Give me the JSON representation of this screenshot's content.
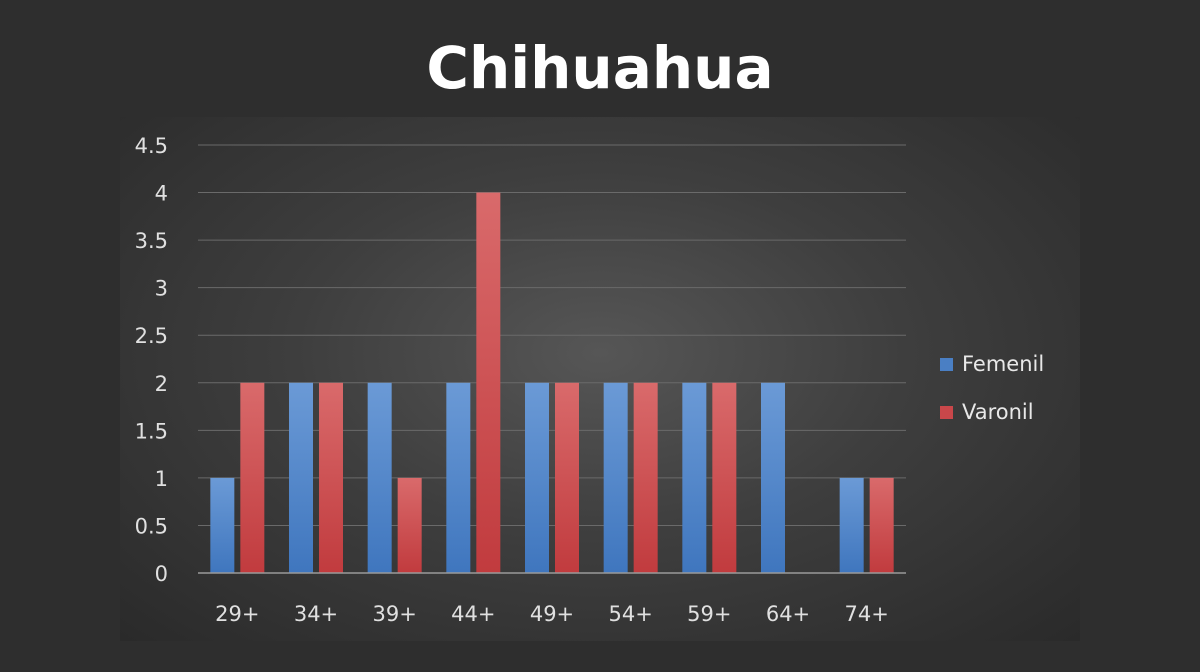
{
  "chart_data": {
    "type": "bar",
    "title": "Chihuahua",
    "categories": [
      "29+",
      "34+",
      "39+",
      "44+",
      "49+",
      "54+",
      "59+",
      "64+",
      "74+"
    ],
    "series": [
      {
        "name": "Femenil",
        "color": "#4a7fc4",
        "values": [
          1,
          2,
          2,
          2,
          2,
          2,
          2,
          2,
          1
        ]
      },
      {
        "name": "Varonil",
        "color": "#c9474a",
        "values": [
          2,
          2,
          1,
          4,
          2,
          2,
          2,
          0,
          1
        ]
      }
    ],
    "xlabel": "",
    "ylabel": "",
    "ylim": [
      0,
      4.5
    ],
    "yticks": [
      "0",
      "0.5",
      "1",
      "1.5",
      "2",
      "2.5",
      "3",
      "3.5",
      "4",
      "4.5"
    ],
    "grid": true,
    "legend_position": "right"
  }
}
